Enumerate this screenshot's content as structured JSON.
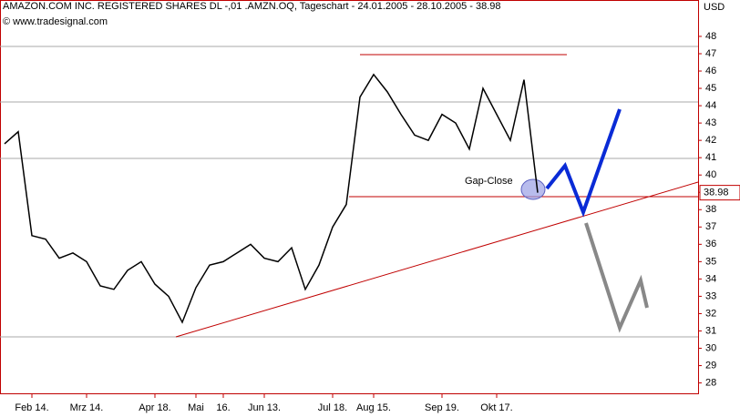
{
  "chart_data": {
    "type": "line",
    "title": "AMAZON.COM INC. REGISTERED SHARES DL -,01 .AMZN.OQ, Tageschart - 24.01.2005 - 28.10.2005 - 38.98",
    "source": "© www.tradesignal.com",
    "y_axis_label": "USD",
    "annotation": "Gap-Close",
    "last_value": 38.98,
    "categories": [
      null,
      null,
      "Feb 14.",
      null,
      null,
      null,
      "Mrz 14.",
      null,
      null,
      null,
      null,
      "Apr 18.",
      null,
      null,
      "Mai",
      null,
      "16.",
      null,
      null,
      "Jun 13.",
      null,
      null,
      null,
      null,
      "Jul 18.",
      null,
      null,
      "Aug 15.",
      null,
      null,
      null,
      null,
      "Sep 19.",
      null,
      null,
      null,
      "Okt 17.",
      null,
      null,
      null
    ],
    "series": [
      {
        "name": "AMZN",
        "color": "#000000",
        "values": [
          41.8,
          42.5,
          36.5,
          36.3,
          35.2,
          35.5,
          35.0,
          33.6,
          33.4,
          34.5,
          35.0,
          33.7,
          33.0,
          31.5,
          33.5,
          34.8,
          35.0,
          35.5,
          36.0,
          35.2,
          35.0,
          35.8,
          33.4,
          34.8,
          37.0,
          38.3,
          44.5,
          45.8,
          44.8,
          43.5,
          42.3,
          42.0,
          43.5,
          43.0,
          41.5,
          45.0,
          43.5,
          42.0,
          45.5,
          38.98
        ]
      }
    ],
    "ylim": [
      27.4,
      50.1
    ],
    "yticks": [
      28,
      29,
      30,
      31,
      32,
      33,
      34,
      35,
      36,
      37,
      38,
      39,
      40,
      41,
      42,
      43,
      44,
      45,
      46,
      47,
      48
    ]
  }
}
